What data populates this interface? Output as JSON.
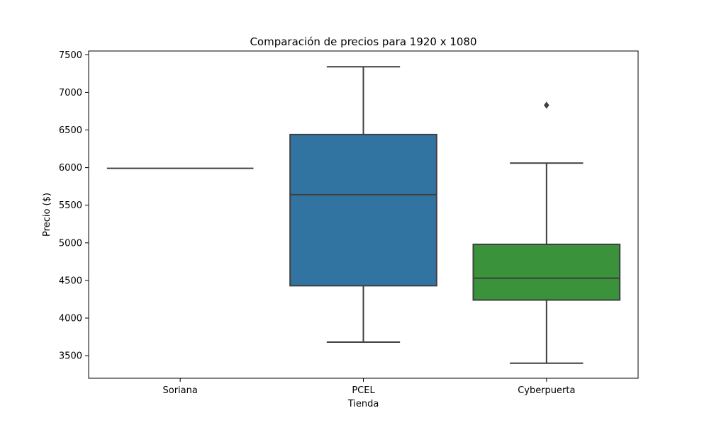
{
  "chart_data": {
    "type": "box",
    "title": "Comparación de precios para 1920 x 1080",
    "xlabel": "Tienda",
    "ylabel": "Precio ($)",
    "ylim": [
      3200,
      7550
    ],
    "yticks": [
      3500,
      4000,
      4500,
      5000,
      5500,
      6000,
      6500,
      7000,
      7500
    ],
    "categories": [
      "Soriana",
      "PCEL",
      "Cyberpuerta"
    ],
    "boxes": [
      {
        "category": "Soriana",
        "whisker_low": 5990,
        "q1": 5990,
        "median": 5990,
        "q3": 5990,
        "whisker_high": 5990,
        "outliers": [],
        "color": "#3a923a"
      },
      {
        "category": "PCEL",
        "whisker_low": 3680,
        "q1": 4430,
        "median": 5640,
        "q3": 6440,
        "whisker_high": 7340,
        "outliers": [],
        "color": "#3274a1"
      },
      {
        "category": "Cyberpuerta",
        "whisker_low": 3400,
        "q1": 4240,
        "median": 4530,
        "q3": 4980,
        "whisker_high": 6060,
        "outliers": [
          6830
        ],
        "color": "#3a923a"
      }
    ],
    "grid": false,
    "legend": "none",
    "box_edge_color": "#3f3f3f",
    "box_fill_colors": {
      "PCEL": "#3274a1",
      "Cyberpuerta": "#3a923a"
    }
  }
}
